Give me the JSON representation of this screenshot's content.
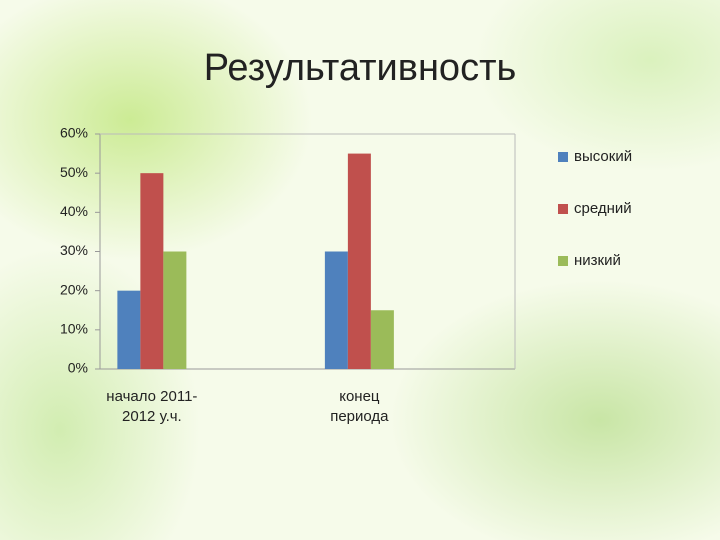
{
  "chart_data": {
    "type": "bar",
    "title": "Результативность",
    "categories": [
      "начало 2011-\n2012 у.ч.",
      "конец\nпериода"
    ],
    "series": [
      {
        "name": "высокий",
        "color": "#4f81bd",
        "values": [
          20,
          30
        ]
      },
      {
        "name": "средний",
        "color": "#c0504d",
        "values": [
          50,
          55
        ]
      },
      {
        "name": "низкий",
        "color": "#9bbb59",
        "values": [
          30,
          15
        ]
      }
    ],
    "ylim": [
      0,
      60
    ],
    "yticks": [
      {
        "value": 0,
        "label": "0%"
      },
      {
        "value": 10,
        "label": "10%"
      },
      {
        "value": 20,
        "label": "20%"
      },
      {
        "value": 30,
        "label": "30%"
      },
      {
        "value": 40,
        "label": "40%"
      },
      {
        "value": 50,
        "label": "50%"
      },
      {
        "value": 60,
        "label": "60%"
      }
    ],
    "grid": false,
    "legend": "right"
  }
}
